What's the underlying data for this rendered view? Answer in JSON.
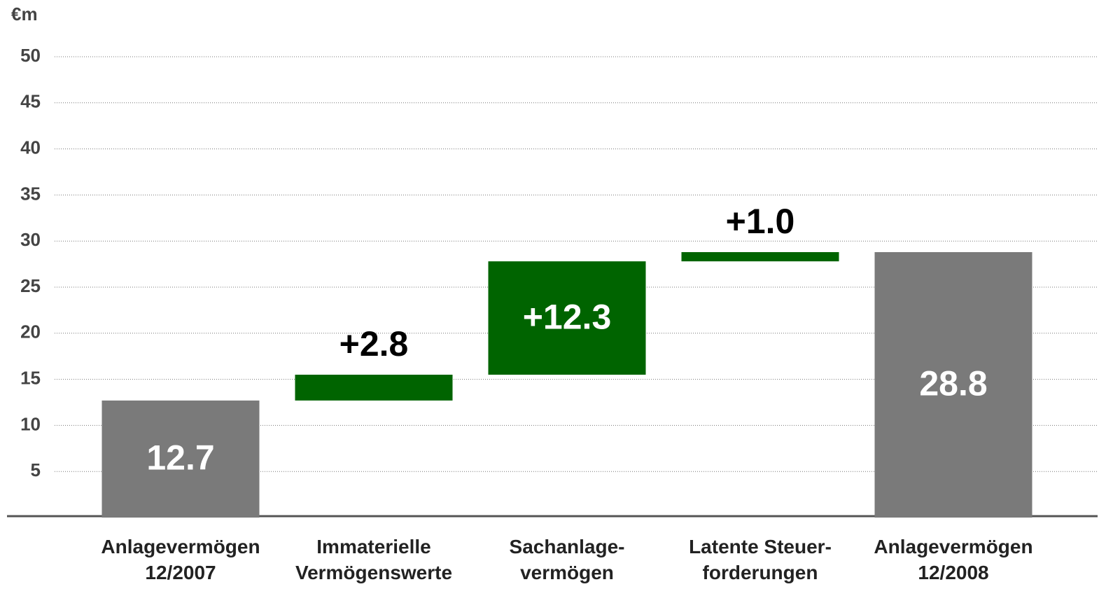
{
  "chart_data": {
    "type": "waterfall",
    "unit": "€m",
    "categories": [
      [
        "Anlagevermögen",
        "12/2007"
      ],
      [
        "Immaterielle",
        "Vermögenswerte"
      ],
      [
        "Sachanlage-",
        "vermögen"
      ],
      [
        "Latente Steuer-",
        "forderungen"
      ],
      [
        "Anlagevermögen",
        "12/2008"
      ]
    ],
    "values": [
      12.7,
      2.8,
      12.3,
      1.0,
      28.8
    ],
    "value_labels": [
      "12.7",
      "+2.8",
      "+12.3",
      "+1.0",
      "28.8"
    ],
    "measure": [
      "total",
      "relative",
      "relative",
      "relative",
      "total"
    ],
    "colors": [
      "#7a7a7a",
      "#006400",
      "#006400",
      "#006400",
      "#7a7a7a"
    ],
    "ylim": [
      0,
      50
    ],
    "yticks": [
      5,
      10,
      15,
      20,
      25,
      30,
      35,
      40,
      45,
      50
    ],
    "grid": true
  }
}
